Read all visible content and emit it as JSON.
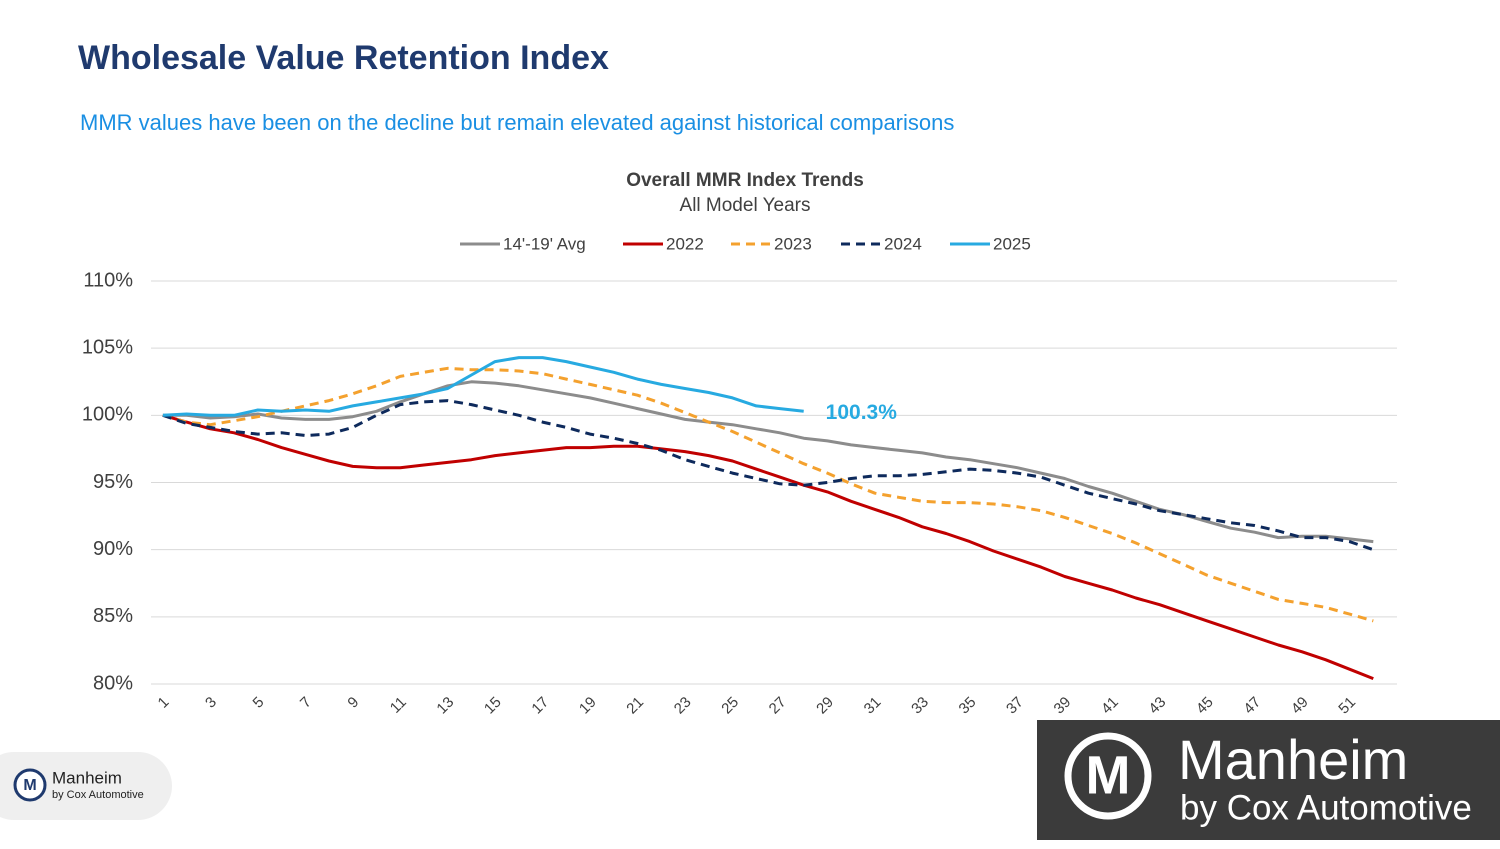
{
  "slide_title": "Wholesale Value Retention Index",
  "slide_subtitle": "MMR values have been on the decline but remain elevated against historical comparisons",
  "footer_logo": {
    "name": "Manheim",
    "tagline": "by Cox Automotive"
  },
  "watermark_logo": {
    "name": "Manheim",
    "tagline": "by Cox Automotive"
  },
  "chart_data": {
    "type": "line",
    "title": "Overall MMR Index Trends",
    "subtitle": "All Model Years",
    "categories": [
      1,
      null,
      3,
      null,
      5,
      null,
      7,
      null,
      9,
      null,
      11,
      null,
      13,
      null,
      15,
      null,
      17,
      null,
      19,
      null,
      21,
      null,
      23,
      null,
      25,
      null,
      27,
      null,
      29,
      null,
      31,
      null,
      33,
      null,
      35,
      null,
      37,
      null,
      39,
      null,
      41,
      null,
      43,
      null,
      45,
      null,
      47,
      null,
      49,
      null,
      51,
      null
    ],
    "ylim": [
      80,
      110
    ],
    "yticks": [
      {
        "value": 80,
        "label": "80%"
      },
      {
        "value": 85,
        "label": "85%"
      },
      {
        "value": 90,
        "label": "90%"
      },
      {
        "value": 95,
        "label": "95%"
      },
      {
        "value": 100,
        "label": "100%"
      },
      {
        "value": 105,
        "label": "105%"
      },
      {
        "value": 110,
        "label": "110%"
      }
    ],
    "grid": true,
    "legend": "top",
    "series": [
      {
        "name": "14'-19' Avg",
        "color": "#8c8c8c",
        "dashed": false,
        "values": [
          100,
          100.0,
          99.8,
          99.9,
          100.1,
          99.8,
          99.7,
          99.7,
          99.9,
          100.3,
          101.0,
          101.6,
          102.2,
          102.5,
          102.4,
          102.2,
          101.9,
          101.6,
          101.3,
          100.9,
          100.5,
          100.1,
          99.7,
          99.5,
          99.3,
          99.0,
          98.7,
          98.3,
          98.1,
          97.8,
          97.6,
          97.4,
          97.2,
          96.9,
          96.7,
          96.4,
          96.1,
          95.7,
          95.3,
          94.7,
          94.2,
          93.6,
          93.0,
          92.6,
          92.1,
          91.6,
          91.3,
          90.9,
          91.0,
          91.0,
          90.8,
          90.6
        ]
      },
      {
        "name": "2022",
        "color": "#c00000",
        "dashed": false,
        "values": [
          100,
          99.5,
          99.0,
          98.7,
          98.2,
          97.6,
          97.1,
          96.6,
          96.2,
          96.1,
          96.1,
          96.3,
          96.5,
          96.7,
          97.0,
          97.2,
          97.4,
          97.6,
          97.6,
          97.7,
          97.7,
          97.5,
          97.3,
          97.0,
          96.6,
          96.0,
          95.4,
          94.8,
          94.3,
          93.6,
          93.0,
          92.4,
          91.7,
          91.2,
          90.6,
          89.9,
          89.3,
          88.7,
          88.0,
          87.5,
          87.0,
          86.4,
          85.9,
          85.3,
          84.7,
          84.1,
          83.5,
          82.9,
          82.4,
          81.8,
          81.1,
          80.4
        ]
      },
      {
        "name": "2023",
        "color": "#f4a12e",
        "dashed": true,
        "values": [
          100,
          99.5,
          99.3,
          99.6,
          99.9,
          100.3,
          100.7,
          101.1,
          101.6,
          102.2,
          102.9,
          103.2,
          103.5,
          103.4,
          103.4,
          103.3,
          103.1,
          102.7,
          102.3,
          101.9,
          101.5,
          100.9,
          100.2,
          99.5,
          98.8,
          98.0,
          97.2,
          96.4,
          95.7,
          94.9,
          94.2,
          93.9,
          93.6,
          93.5,
          93.5,
          93.4,
          93.2,
          92.9,
          92.4,
          91.8,
          91.2,
          90.5,
          89.7,
          88.9,
          88.1,
          87.5,
          86.9,
          86.3,
          86.0,
          85.7,
          85.2,
          84.7
        ]
      },
      {
        "name": "2024",
        "color": "#0e2a5c",
        "dashed": true,
        "values": [
          100,
          99.4,
          99.1,
          98.8,
          98.6,
          98.7,
          98.5,
          98.6,
          99.1,
          100.0,
          100.8,
          101.0,
          101.1,
          100.8,
          100.4,
          100.0,
          99.5,
          99.1,
          98.6,
          98.3,
          97.9,
          97.4,
          96.7,
          96.2,
          95.7,
          95.3,
          94.9,
          94.8,
          95.0,
          95.3,
          95.5,
          95.5,
          95.6,
          95.8,
          96.0,
          95.9,
          95.7,
          95.4,
          94.8,
          94.2,
          93.8,
          93.4,
          92.9,
          92.6,
          92.3,
          92.0,
          91.8,
          91.4,
          90.9,
          90.9,
          90.6,
          90.0
        ]
      },
      {
        "name": "2025",
        "color": "#27aae1",
        "dashed": false,
        "values": [
          100,
          100.1,
          100.0,
          100.0,
          100.4,
          100.3,
          100.4,
          100.3,
          100.7,
          101.0,
          101.3,
          101.6,
          102.0,
          103.0,
          104.0,
          104.3,
          104.3,
          104.0,
          103.6,
          103.2,
          102.7,
          102.3,
          102.0,
          101.7,
          101.3,
          100.7,
          100.5,
          100.3,
          null,
          null,
          null,
          null,
          null,
          null,
          null,
          null,
          null,
          null,
          null,
          null,
          null,
          null,
          null,
          null,
          null,
          null,
          null,
          null,
          null,
          null,
          null,
          null
        ],
        "value_labels": [
          null,
          null,
          null,
          null,
          null,
          null,
          null,
          null,
          null,
          null,
          null,
          null,
          null,
          null,
          null,
          null,
          null,
          null,
          null,
          null,
          null,
          null,
          null,
          null,
          null,
          null,
          null,
          "100.3%",
          null,
          null,
          null,
          null,
          null,
          null,
          null,
          null,
          null,
          null,
          null,
          null,
          null,
          null,
          null,
          null,
          null,
          null,
          null,
          null,
          null,
          null,
          null,
          null
        ]
      }
    ]
  }
}
